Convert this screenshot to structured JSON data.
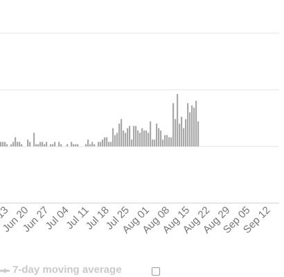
{
  "chart_data": {
    "type": "bar",
    "title": "",
    "xlabel": "",
    "ylabel": "",
    "grid": true,
    "colors": {
      "bar": "#a8a8a8",
      "grid": "#e6e6e6",
      "tick_label": "#757575"
    },
    "x_tick_labels": [
      "Jun 13",
      "Jun 20",
      "Jun 27",
      "Jul 04",
      "Jul 11",
      "Jul 18",
      "Jul 25",
      "Aug 01",
      "Aug 08",
      "Aug 15",
      "Aug 22",
      "Aug 29",
      "Sep 05",
      "Sep 12"
    ],
    "x_start": "Jun 13",
    "values": [
      2,
      2,
      2,
      1,
      0,
      1,
      2,
      4,
      2,
      2,
      1,
      0,
      0,
      3,
      2,
      0,
      6,
      1,
      1,
      2,
      2,
      1,
      2,
      0,
      1,
      1,
      2,
      0,
      2,
      1,
      0,
      0,
      1,
      0,
      2,
      1,
      1,
      1,
      0,
      0,
      0,
      1,
      3,
      1,
      2,
      1,
      0,
      2,
      2,
      3,
      4,
      4,
      2,
      2,
      8,
      5,
      6,
      10,
      12,
      7,
      6,
      8,
      9,
      3,
      9,
      9,
      7,
      6,
      8,
      7,
      7,
      6,
      11,
      3,
      3,
      10,
      8,
      7,
      3,
      5,
      5,
      4,
      4,
      19,
      12,
      23,
      10,
      13,
      8,
      12,
      19,
      15,
      18,
      17,
      20,
      11
    ]
  },
  "legend": {
    "label": "7-day moving average",
    "colors": {
      "marker": "#c9c9c9"
    }
  }
}
